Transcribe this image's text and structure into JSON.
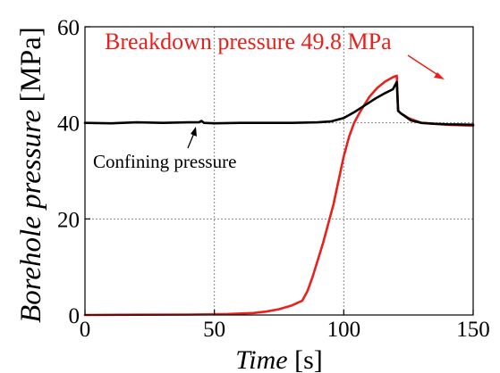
{
  "chart_data": {
    "type": "line",
    "xlabel": {
      "italic": "Time",
      "unit": " [s]"
    },
    "ylabel": {
      "italic": "Borehole pressure",
      "unit": " [MPa]"
    },
    "xlim": [
      0,
      150
    ],
    "ylim": [
      0,
      60
    ],
    "xticks": [
      "0",
      "50",
      "100",
      "150"
    ],
    "yticks": [
      "0",
      "20",
      "40",
      "60"
    ],
    "grid": true,
    "grid_style": "dotted",
    "series": [
      {
        "color": "#e8211d",
        "x": [
          0,
          20,
          40,
          55,
          65,
          70,
          75,
          80,
          84,
          86,
          88,
          90,
          92,
          94,
          96,
          98,
          100,
          102,
          104,
          106,
          108,
          110,
          113,
          116,
          119,
          120.5,
          121,
          122,
          125,
          130,
          140,
          150
        ],
        "y": [
          0,
          0.05,
          0.1,
          0.2,
          0.4,
          0.7,
          1.2,
          2.0,
          3.0,
          5.0,
          8.0,
          11.5,
          15.0,
          19.0,
          23.0,
          28.0,
          33.0,
          37.0,
          40.0,
          42.0,
          43.8,
          45.5,
          47.3,
          48.6,
          49.5,
          49.8,
          42.5,
          42.0,
          41.0,
          40.0,
          39.6,
          39.4
        ]
      },
      {
        "color": "#000000",
        "x": [
          0,
          10,
          20,
          30,
          40,
          44,
          45,
          46,
          50,
          60,
          70,
          80,
          90,
          95,
          100,
          104,
          108,
          112,
          116,
          119,
          120.5,
          121,
          122,
          126,
          130,
          135,
          140,
          150
        ],
        "y": [
          40.0,
          39.9,
          40.1,
          40.0,
          40.1,
          40.1,
          40.4,
          40.0,
          39.9,
          40.0,
          40.0,
          40.0,
          40.1,
          40.3,
          41.0,
          42.2,
          43.6,
          45.0,
          46.2,
          47.0,
          48.5,
          42.5,
          42.0,
          40.5,
          40.0,
          39.8,
          39.7,
          39.6
        ]
      }
    ],
    "annotations": [
      {
        "text": "Breakdown pressure 49.8 MPa",
        "color": "#e8211d",
        "arrow_to": [
          120.5,
          49.8
        ]
      },
      {
        "text": "Confining pressure",
        "color": "#000000",
        "arrow_to": [
          45,
          40.1
        ]
      }
    ]
  }
}
